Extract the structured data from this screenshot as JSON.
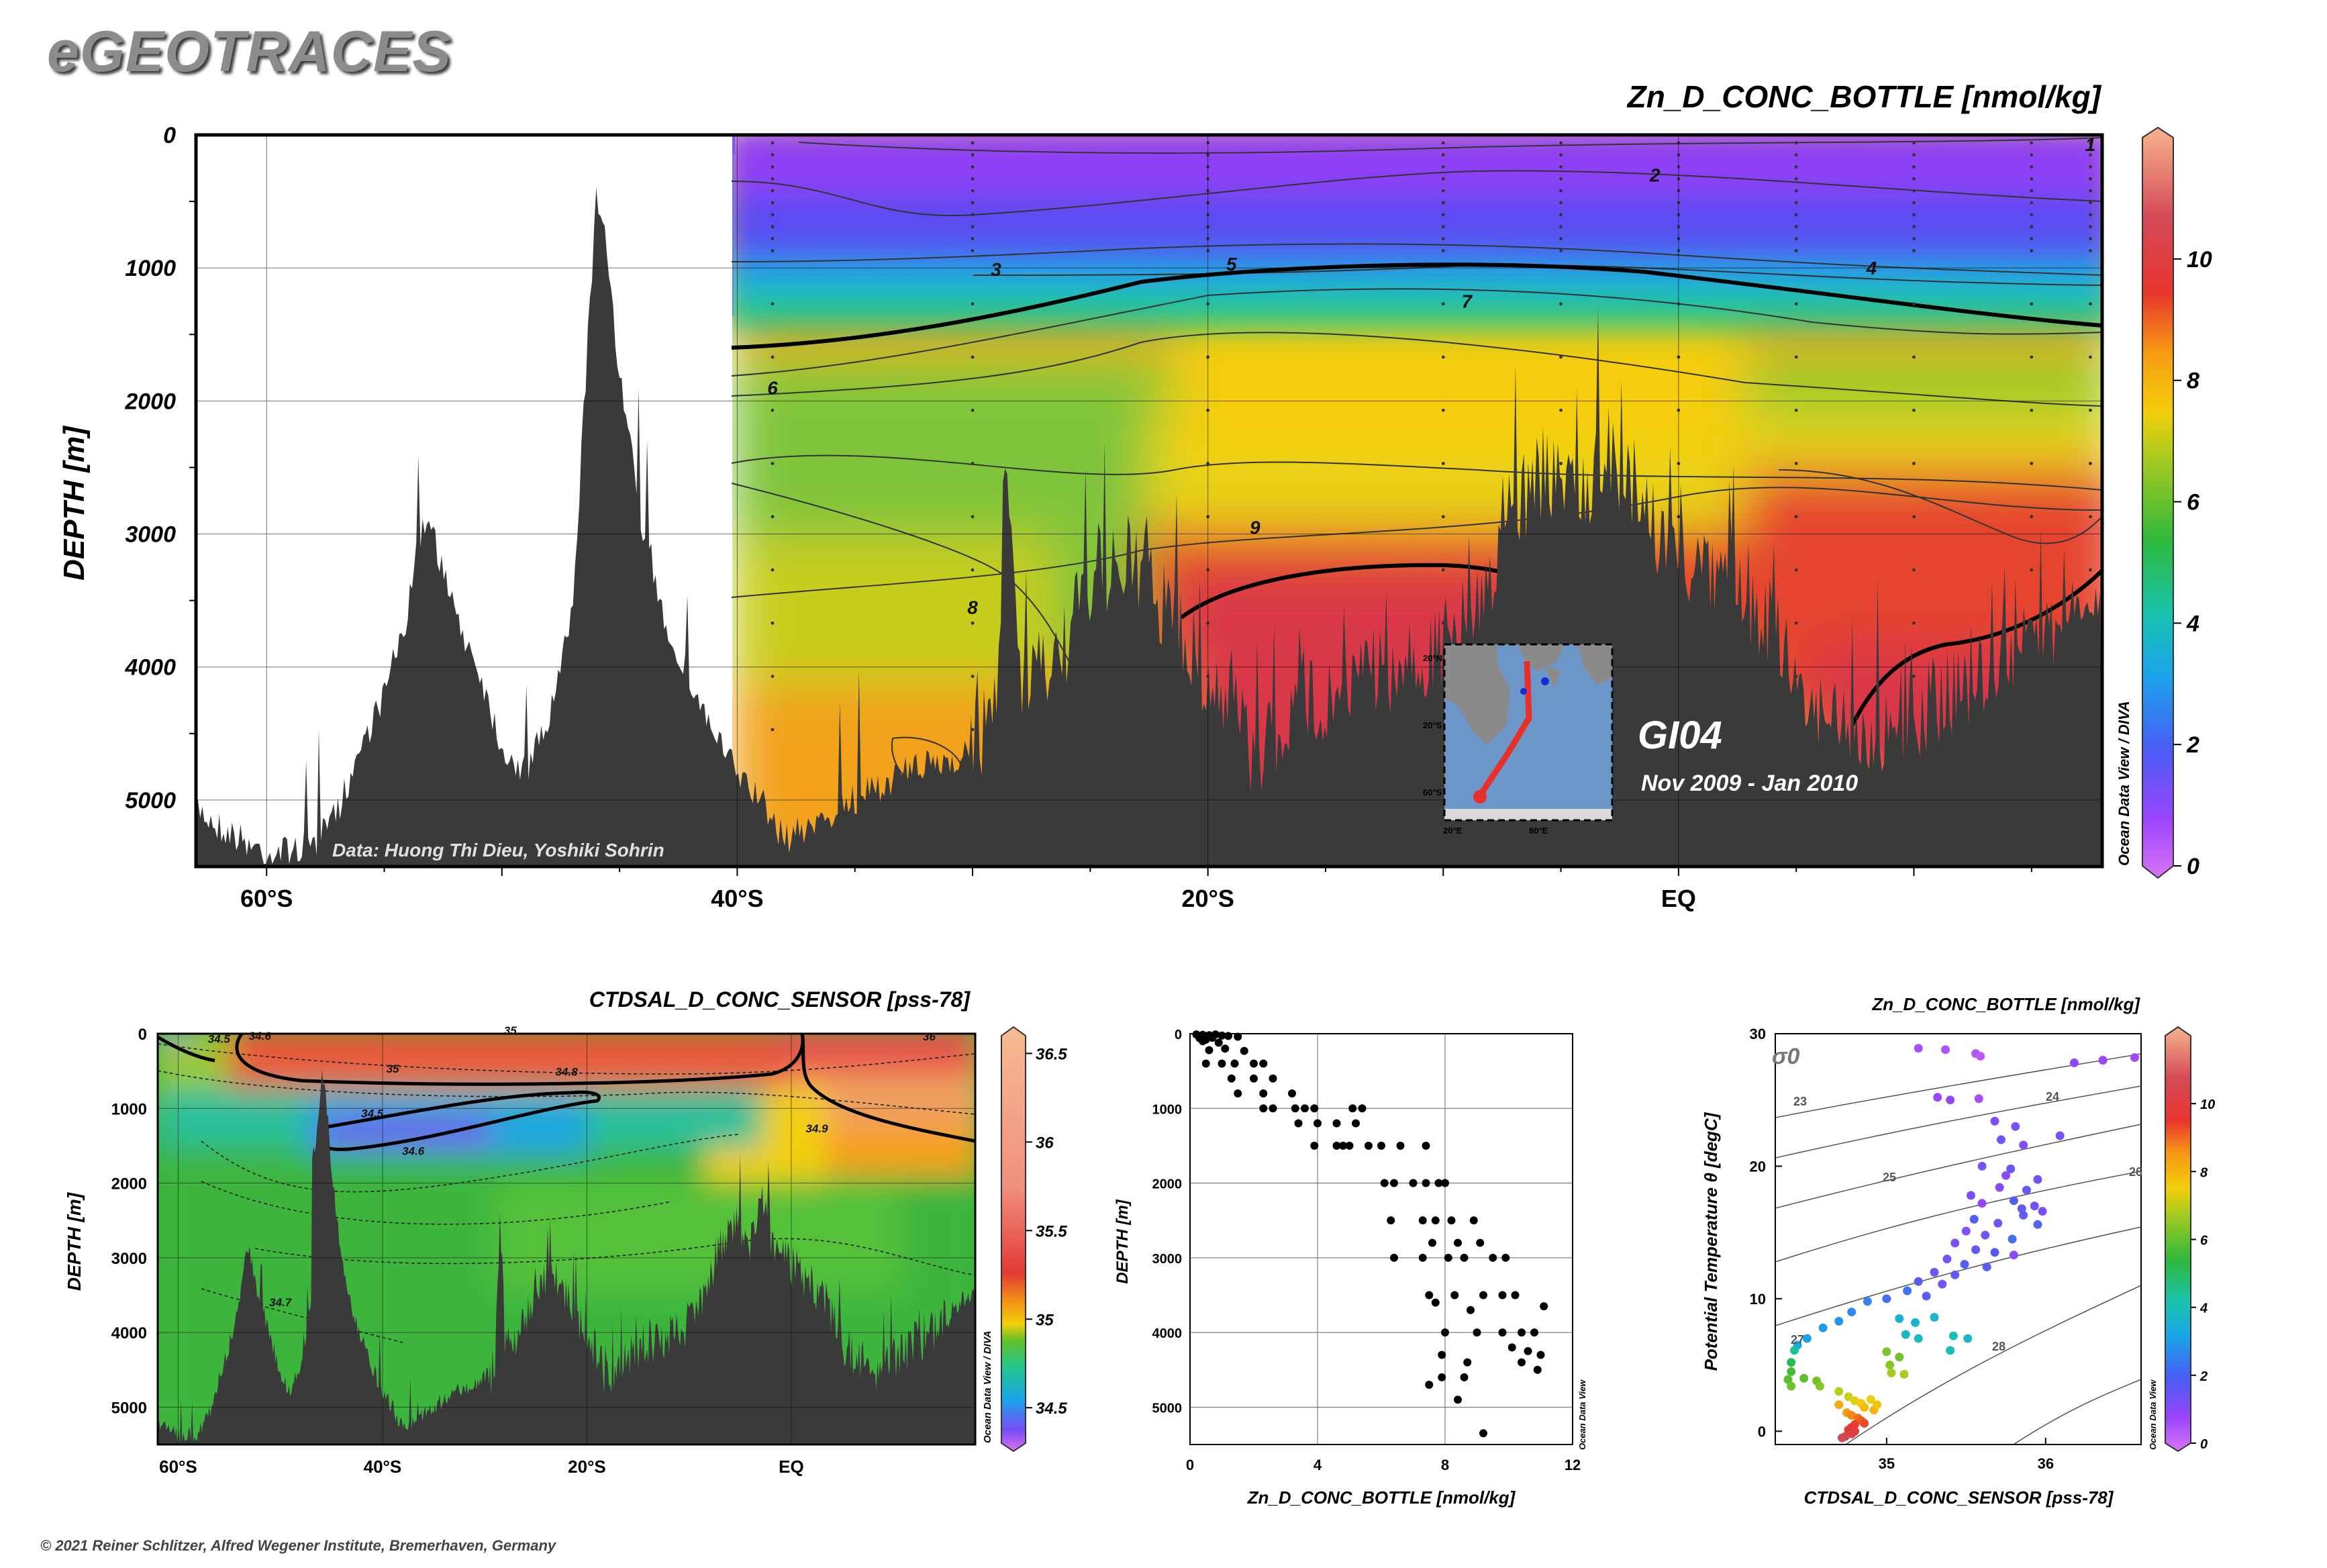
{
  "header": {
    "logo": "eGEOTRACES",
    "copyright": "© 2021 Reiner Schlitzer, Alfred Wegener Institute, Bremerhaven, Germany"
  },
  "chart_data": [
    {
      "id": "main_section",
      "type": "heatmap",
      "title": "Zn_D_CONC_BOTTLE [nmol/kg]",
      "ylabel": "DEPTH [m]",
      "xlabel": "",
      "x_ticks": [
        {
          "value": -60,
          "label": "60°S"
        },
        {
          "value": -40,
          "label": "40°S"
        },
        {
          "value": -20,
          "label": "20°S"
        },
        {
          "value": 0,
          "label": "EQ"
        }
      ],
      "x_range": [
        -63,
        18
      ],
      "y_ticks": [
        0,
        1000,
        2000,
        3000,
        4000,
        5000
      ],
      "y_range": [
        0,
        5500
      ],
      "colorbar": {
        "min": 0,
        "max": 12,
        "ticks": [
          0,
          2,
          4,
          6,
          8,
          10
        ]
      },
      "contour_labels": [
        {
          "text": "1",
          "lat": 17.5,
          "depth": 120
        },
        {
          "text": "2",
          "lat": -1,
          "depth": 350
        },
        {
          "text": "3",
          "lat": -29,
          "depth": 1060
        },
        {
          "text": "4",
          "lat": 8.2,
          "depth": 1050
        },
        {
          "text": "5",
          "lat": -19,
          "depth": 1020
        },
        {
          "text": "7",
          "lat": -9,
          "depth": 1300
        },
        {
          "text": "6",
          "lat": -38.5,
          "depth": 1950
        },
        {
          "text": "9",
          "lat": -18,
          "depth": 3000
        },
        {
          "text": "8",
          "lat": -30,
          "depth": 3600
        }
      ],
      "annotations": {
        "credit": "Data: Huong Thi Dieu, Yoshiki Sohrin",
        "cruise": "GI04",
        "period": "Nov 2009 - Jan 2010",
        "side_credit": "Ocean Data View / DIVA"
      }
    },
    {
      "id": "salinity_section",
      "type": "heatmap",
      "title": "CTDSAL_D_CONC_SENSOR [pss-78]",
      "ylabel": "DEPTH [m]",
      "x_ticks": [
        {
          "value": -60,
          "label": "60°S"
        },
        {
          "value": -40,
          "label": "40°S"
        },
        {
          "value": -20,
          "label": "20°S"
        },
        {
          "value": 0,
          "label": "EQ"
        }
      ],
      "x_range": [
        -62,
        18
      ],
      "y_ticks": [
        0,
        1000,
        2000,
        3000,
        4000,
        5000
      ],
      "y_range": [
        0,
        5500
      ],
      "colorbar": {
        "min": 34.3,
        "max": 36.6,
        "ticks": [
          34.5,
          35,
          35.5,
          36,
          36.5
        ]
      },
      "contour_labels": [
        {
          "text": "34.5",
          "lat": -56,
          "depth": 120
        },
        {
          "text": "34.6",
          "lat": -52,
          "depth": 80
        },
        {
          "text": "35",
          "lat": -27.5,
          "depth": 10
        },
        {
          "text": "36",
          "lat": 13.5,
          "depth": 90
        },
        {
          "text": "35",
          "lat": -39,
          "depth": 520
        },
        {
          "text": "34.8",
          "lat": -22,
          "depth": 560
        },
        {
          "text": "34.5",
          "lat": -41,
          "depth": 1120
        },
        {
          "text": "34.6",
          "lat": -37,
          "depth": 1620
        },
        {
          "text": "34.9",
          "lat": 2.5,
          "depth": 1320
        },
        {
          "text": "34.7",
          "lat": -50,
          "depth": 3650
        }
      ],
      "side_credit": "Ocean Data View / DIVA"
    },
    {
      "id": "profile_scatter",
      "type": "scatter",
      "xlabel": "Zn_D_CONC_BOTTLE [nmol/kg]",
      "ylabel": "DEPTH [m]",
      "x_ticks": [
        0,
        4,
        8,
        12
      ],
      "x_range": [
        0,
        12
      ],
      "y_ticks": [
        0,
        1000,
        2000,
        3000,
        4000,
        5000
      ],
      "y_range": [
        0,
        5500
      ],
      "points": [
        [
          0.2,
          10
        ],
        [
          0.4,
          15
        ],
        [
          0.6,
          20
        ],
        [
          0.8,
          10
        ],
        [
          1.0,
          25
        ],
        [
          1.2,
          30
        ],
        [
          0.3,
          60
        ],
        [
          0.5,
          80
        ],
        [
          0.7,
          55
        ],
        [
          1.5,
          40
        ],
        [
          0.4,
          100
        ],
        [
          0.9,
          120
        ],
        [
          1.1,
          200
        ],
        [
          0.6,
          220
        ],
        [
          1.7,
          230
        ],
        [
          0.5,
          400
        ],
        [
          1.0,
          400
        ],
        [
          1.4,
          400
        ],
        [
          2.0,
          400
        ],
        [
          2.3,
          400
        ],
        [
          1.3,
          600
        ],
        [
          2.0,
          600
        ],
        [
          2.6,
          600
        ],
        [
          1.5,
          800
        ],
        [
          2.3,
          800
        ],
        [
          3.2,
          800
        ],
        [
          2.3,
          1000
        ],
        [
          2.6,
          1000
        ],
        [
          3.3,
          1000
        ],
        [
          3.6,
          1000
        ],
        [
          3.9,
          1000
        ],
        [
          5.1,
          1000
        ],
        [
          5.4,
          1000
        ],
        [
          3.4,
          1200
        ],
        [
          4.0,
          1200
        ],
        [
          4.6,
          1200
        ],
        [
          5.2,
          1200
        ],
        [
          3.9,
          1500
        ],
        [
          4.6,
          1500
        ],
        [
          4.8,
          1500
        ],
        [
          5.0,
          1500
        ],
        [
          5.6,
          1500
        ],
        [
          6.0,
          1500
        ],
        [
          6.6,
          1500
        ],
        [
          7.4,
          1500
        ],
        [
          6.1,
          2000
        ],
        [
          6.4,
          2000
        ],
        [
          7.0,
          2000
        ],
        [
          7.4,
          2000
        ],
        [
          7.8,
          2000
        ],
        [
          8.0,
          2000
        ],
        [
          6.3,
          2500
        ],
        [
          7.3,
          2500
        ],
        [
          7.7,
          2500
        ],
        [
          8.2,
          2500
        ],
        [
          8.9,
          2500
        ],
        [
          7.6,
          2800
        ],
        [
          8.4,
          2800
        ],
        [
          9.1,
          2800
        ],
        [
          6.4,
          3000
        ],
        [
          7.3,
          3000
        ],
        [
          8.1,
          3000
        ],
        [
          8.6,
          3000
        ],
        [
          9.5,
          3000
        ],
        [
          9.9,
          3000
        ],
        [
          7.5,
          3500
        ],
        [
          8.3,
          3500
        ],
        [
          9.2,
          3500
        ],
        [
          9.8,
          3500
        ],
        [
          10.2,
          3500
        ],
        [
          7.7,
          3600
        ],
        [
          8.8,
          3700
        ],
        [
          11.1,
          3650
        ],
        [
          8.0,
          4000
        ],
        [
          9.0,
          4000
        ],
        [
          9.8,
          4000
        ],
        [
          10.4,
          4000
        ],
        [
          10.8,
          4000
        ],
        [
          7.9,
          4300
        ],
        [
          8.7,
          4400
        ],
        [
          10.1,
          4200
        ],
        [
          10.6,
          4250
        ],
        [
          11.0,
          4300
        ],
        [
          7.9,
          4600
        ],
        [
          8.6,
          4600
        ],
        [
          10.4,
          4400
        ],
        [
          10.9,
          4500
        ],
        [
          7.5,
          4700
        ],
        [
          8.4,
          4900
        ],
        [
          9.2,
          5350
        ]
      ],
      "side_credit": "Ocean Data View"
    },
    {
      "id": "ts_diagram",
      "type": "scatter",
      "title": "Zn_D_CONC_BOTTLE [nmol/kg]",
      "xlabel": "CTDSAL_D_CONC_SENSOR [pss-78]",
      "ylabel": "Potential Temperature θ [degC]",
      "x_ticks": [
        35,
        36
      ],
      "x_range": [
        34.3,
        36.6
      ],
      "y_ticks": [
        0,
        10,
        20,
        30
      ],
      "y_range": [
        -1,
        30
      ],
      "colorbar": {
        "min": 0,
        "max": 12,
        "ticks": [
          0,
          2,
          4,
          6,
          8,
          10
        ]
      },
      "sigma_symbol": "σ0",
      "sigma_isopycnals": [
        {
          "label": "23",
          "value": 23
        },
        {
          "label": "24",
          "value": 24
        },
        {
          "label": "25",
          "value": 25
        },
        {
          "label": "26",
          "value": 26
        },
        {
          "label": "27",
          "value": 27
        },
        {
          "label": "28",
          "value": 28
        }
      ],
      "points": [
        [
          35.2,
          28.9,
          0.8
        ],
        [
          35.37,
          28.8,
          0.7
        ],
        [
          35.56,
          28.5,
          0.6
        ],
        [
          35.59,
          28.3,
          0.5
        ],
        [
          36.36,
          28.0,
          1.0
        ],
        [
          36.18,
          27.8,
          1.2
        ],
        [
          36.56,
          28.2,
          0.9
        ],
        [
          35.32,
          25.2,
          1.0
        ],
        [
          35.4,
          25.0,
          1.1
        ],
        [
          35.58,
          25.1,
          0.8
        ],
        [
          35.68,
          23.4,
          1.3
        ],
        [
          35.81,
          23.0,
          1.5
        ],
        [
          36.09,
          22.3,
          1.4
        ],
        [
          35.72,
          22.0,
          1.6
        ],
        [
          35.86,
          21.6,
          1.3
        ],
        [
          35.6,
          20.0,
          1.5
        ],
        [
          35.78,
          19.8,
          1.7
        ],
        [
          35.75,
          19.3,
          1.2
        ],
        [
          35.95,
          19.0,
          1.6
        ],
        [
          35.71,
          18.4,
          1.3
        ],
        [
          35.88,
          18.2,
          1.8
        ],
        [
          35.53,
          17.8,
          1.4
        ],
        [
          35.6,
          17.2,
          1.1
        ],
        [
          35.8,
          17.4,
          2.0
        ],
        [
          35.85,
          16.8,
          1.7
        ],
        [
          35.93,
          17.0,
          1.6
        ],
        [
          35.98,
          16.6,
          1.4
        ],
        [
          35.55,
          16.0,
          1.9
        ],
        [
          35.7,
          15.7,
          1.5
        ],
        [
          35.86,
          16.3,
          1.8
        ],
        [
          35.95,
          15.6,
          2.1
        ],
        [
          35.5,
          15.1,
          1.3
        ],
        [
          35.62,
          14.8,
          1.6
        ],
        [
          35.79,
          14.5,
          2.2
        ],
        [
          35.43,
          14.2,
          1.4
        ],
        [
          35.56,
          13.7,
          1.7
        ],
        [
          35.68,
          13.5,
          1.9
        ],
        [
          35.8,
          13.3,
          1.2
        ],
        [
          35.38,
          13.0,
          1.5
        ],
        [
          35.49,
          12.6,
          2.0
        ],
        [
          35.63,
          12.4,
          1.8
        ],
        [
          35.3,
          12.0,
          1.6
        ],
        [
          35.43,
          11.8,
          1.7
        ],
        [
          35.2,
          11.3,
          1.9
        ],
        [
          35.35,
          11.1,
          1.5
        ],
        [
          35.13,
          10.6,
          2.3
        ],
        [
          35.25,
          10.2,
          1.8
        ],
        [
          35.0,
          10.0,
          2.2
        ],
        [
          34.88,
          9.8,
          2.5
        ],
        [
          34.78,
          9.0,
          2.6
        ],
        [
          34.7,
          8.3,
          2.8
        ],
        [
          34.6,
          7.8,
          2.9
        ],
        [
          34.5,
          7.0,
          3.0
        ],
        [
          34.44,
          6.5,
          3.2
        ],
        [
          35.08,
          8.5,
          3.4
        ],
        [
          35.18,
          8.2,
          3.5
        ],
        [
          35.3,
          8.6,
          3.6
        ],
        [
          35.12,
          7.3,
          3.7
        ],
        [
          35.2,
          7.0,
          3.8
        ],
        [
          35.42,
          7.2,
          3.9
        ],
        [
          35.51,
          7.0,
          3.6
        ],
        [
          35.4,
          6.1,
          3.8
        ],
        [
          34.42,
          6.1,
          4.2
        ],
        [
          34.4,
          5.2,
          4.8
        ],
        [
          34.4,
          4.5,
          5.3
        ],
        [
          34.38,
          3.9,
          5.5
        ],
        [
          34.4,
          3.4,
          5.8
        ],
        [
          34.48,
          4.0,
          5.6
        ],
        [
          34.56,
          3.8,
          5.9
        ],
        [
          34.58,
          3.4,
          6.1
        ],
        [
          35.0,
          6.0,
          6.0
        ],
        [
          35.02,
          5.0,
          6.2
        ],
        [
          35.03,
          4.4,
          6.5
        ],
        [
          35.08,
          5.6,
          5.8
        ],
        [
          35.11,
          4.3,
          6.6
        ],
        [
          34.7,
          3.0,
          6.8
        ],
        [
          34.76,
          2.6,
          7.0
        ],
        [
          34.8,
          2.3,
          7.3
        ],
        [
          34.84,
          2.1,
          7.6
        ],
        [
          34.86,
          1.8,
          7.9
        ],
        [
          34.9,
          2.4,
          7.4
        ],
        [
          34.92,
          1.6,
          8.0
        ],
        [
          34.94,
          2.0,
          7.7
        ],
        [
          34.7,
          2.0,
          8.2
        ],
        [
          34.75,
          1.4,
          8.5
        ],
        [
          34.78,
          1.2,
          8.7
        ],
        [
          34.82,
          1.0,
          8.9
        ],
        [
          34.84,
          0.8,
          9.1
        ],
        [
          34.86,
          0.6,
          9.3
        ],
        [
          34.8,
          0.5,
          9.4
        ],
        [
          34.78,
          0.3,
          9.6
        ],
        [
          34.76,
          0.1,
          9.8
        ],
        [
          34.8,
          0.0,
          10.0
        ],
        [
          34.78,
          -0.2,
          10.3
        ],
        [
          34.74,
          -0.4,
          10.6
        ],
        [
          34.72,
          -0.5,
          10.9
        ]
      ],
      "side_credit": "Ocean Data View"
    }
  ],
  "inset_map": {
    "lat_labels": [
      "20°N",
      "20°S",
      "60°S"
    ],
    "lon_labels": [
      "20°E",
      "80°E"
    ]
  }
}
